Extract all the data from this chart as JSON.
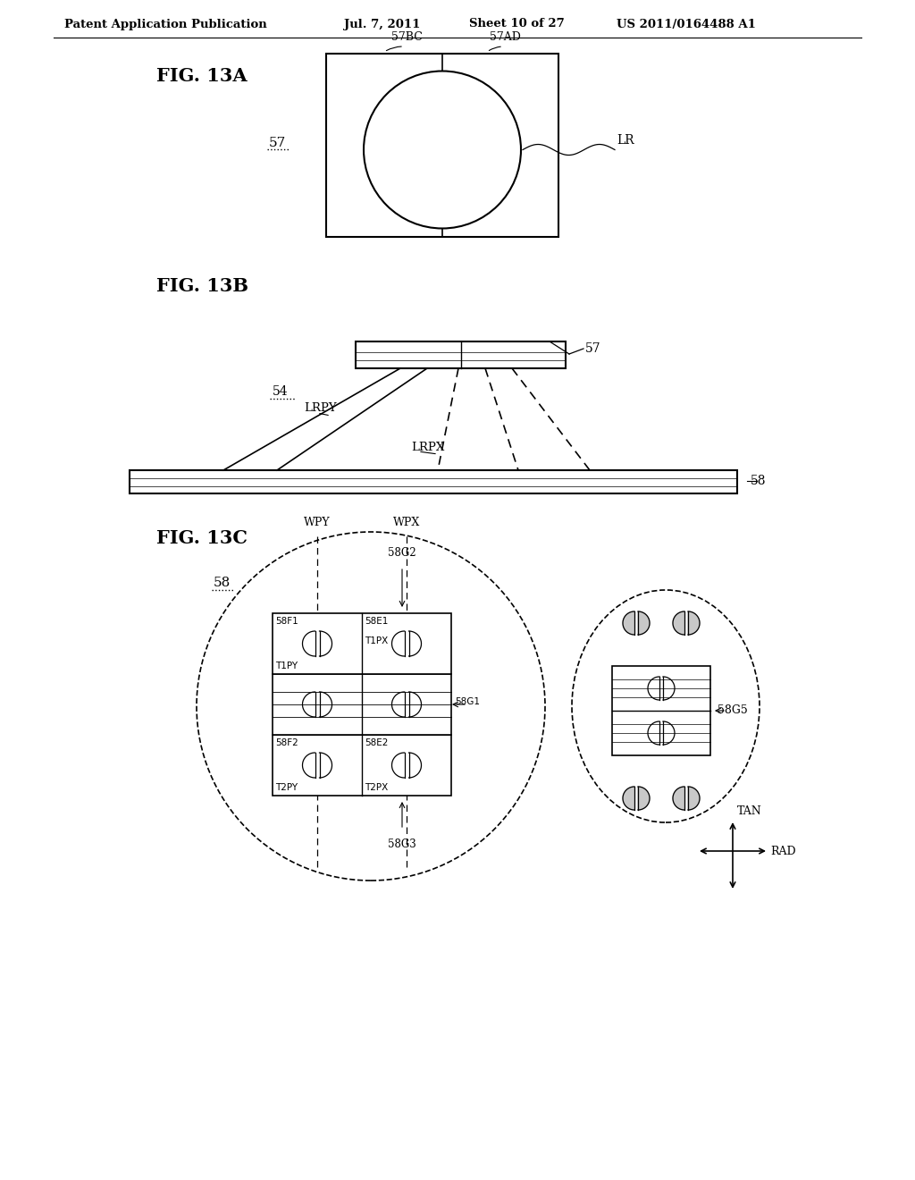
{
  "background": "#ffffff",
  "line_color": "#000000",
  "gray_fill": "#c8c8c8",
  "header_left": "Patent Application Publication",
  "header_date": "Jul. 7, 2011",
  "header_sheet": "Sheet 10 of 27",
  "header_right": "US 2011/0164488 A1"
}
